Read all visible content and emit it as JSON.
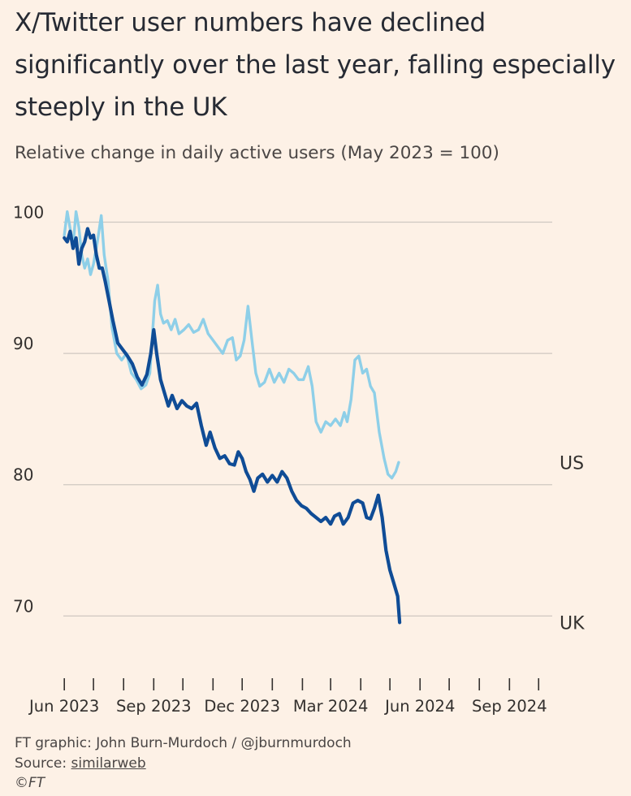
{
  "header": {
    "title": "X/Twitter user numbers have declined significantly over the last year, falling especially steeply in the UK",
    "subtitle": "Relative change in daily active users (May 2023 = 100)"
  },
  "footer": {
    "credit": "FT graphic: John Burn-Murdoch / @jburnmurdoch",
    "source_prefix": "Source: ",
    "source_name": "similarweb",
    "copyright": "©FT"
  },
  "colors": {
    "uk": "#0F4C96",
    "us": "#8ECFE8",
    "grid": "#CFC8C1",
    "text": "#33302E",
    "background": "#FDF1E6"
  },
  "chart_data": {
    "type": "line",
    "title": "X/Twitter user numbers have declined significantly over the last year, falling especially steeply in the UK",
    "ylabel": "Relative change in daily active users (May 2023 = 100)",
    "ylim": [
      66,
      103
    ],
    "xlim": [
      "2023-05-31",
      "2024-10-15"
    ],
    "yticks": [
      100,
      90,
      80,
      70
    ],
    "xticks": [
      {
        "date": "2023-06-01",
        "label": "Jun 2023"
      },
      {
        "date": "2023-07-01",
        "label": ""
      },
      {
        "date": "2023-08-01",
        "label": ""
      },
      {
        "date": "2023-09-01",
        "label": "Sep 2023"
      },
      {
        "date": "2023-10-01",
        "label": ""
      },
      {
        "date": "2023-11-01",
        "label": ""
      },
      {
        "date": "2023-12-01",
        "label": "Dec 2023"
      },
      {
        "date": "2024-01-01",
        "label": ""
      },
      {
        "date": "2024-02-01",
        "label": ""
      },
      {
        "date": "2024-03-01",
        "label": "Mar 2024"
      },
      {
        "date": "2024-04-01",
        "label": ""
      },
      {
        "date": "2024-05-01",
        "label": ""
      },
      {
        "date": "2024-06-01",
        "label": "Jun 2024"
      },
      {
        "date": "2024-07-01",
        "label": ""
      },
      {
        "date": "2024-08-01",
        "label": ""
      },
      {
        "date": "2024-09-01",
        "label": "Sep 2024"
      },
      {
        "date": "2024-10-01",
        "label": ""
      }
    ],
    "grid": true,
    "series": [
      {
        "name": "US",
        "color": "#8ECFE8",
        "points": [
          [
            "2023-06-01",
            99.0
          ],
          [
            "2023-06-04",
            100.8
          ],
          [
            "2023-06-07",
            99.5
          ],
          [
            "2023-06-10",
            98.2
          ],
          [
            "2023-06-13",
            100.8
          ],
          [
            "2023-06-16",
            99.6
          ],
          [
            "2023-06-19",
            97.5
          ],
          [
            "2023-06-22",
            96.5
          ],
          [
            "2023-06-25",
            97.2
          ],
          [
            "2023-06-28",
            96.0
          ],
          [
            "2023-07-01",
            96.8
          ],
          [
            "2023-07-05",
            98.5
          ],
          [
            "2023-07-09",
            100.5
          ],
          [
            "2023-07-12",
            97.5
          ],
          [
            "2023-07-16",
            95.5
          ],
          [
            "2023-07-20",
            92.0
          ],
          [
            "2023-07-25",
            90.0
          ],
          [
            "2023-07-30",
            89.5
          ],
          [
            "2023-08-04",
            90.0
          ],
          [
            "2023-08-09",
            88.5
          ],
          [
            "2023-08-14",
            88.0
          ],
          [
            "2023-08-19",
            87.3
          ],
          [
            "2023-08-24",
            87.6
          ],
          [
            "2023-08-28",
            88.5
          ],
          [
            "2023-09-02",
            94.0
          ],
          [
            "2023-09-05",
            95.2
          ],
          [
            "2023-09-08",
            93.0
          ],
          [
            "2023-09-11",
            92.3
          ],
          [
            "2023-09-15",
            92.5
          ],
          [
            "2023-09-19",
            91.8
          ],
          [
            "2023-09-23",
            92.6
          ],
          [
            "2023-09-27",
            91.5
          ],
          [
            "2023-10-02",
            91.8
          ],
          [
            "2023-10-07",
            92.2
          ],
          [
            "2023-10-12",
            91.6
          ],
          [
            "2023-10-17",
            91.8
          ],
          [
            "2023-10-22",
            92.6
          ],
          [
            "2023-10-27",
            91.5
          ],
          [
            "2023-11-01",
            91.0
          ],
          [
            "2023-11-06",
            90.5
          ],
          [
            "2023-11-11",
            90.0
          ],
          [
            "2023-11-16",
            91.0
          ],
          [
            "2023-11-21",
            91.2
          ],
          [
            "2023-11-25",
            89.5
          ],
          [
            "2023-11-29",
            89.8
          ],
          [
            "2023-12-03",
            91.0
          ],
          [
            "2023-12-07",
            93.6
          ],
          [
            "2023-12-11",
            91.0
          ],
          [
            "2023-12-15",
            88.5
          ],
          [
            "2023-12-19",
            87.5
          ],
          [
            "2023-12-24",
            87.8
          ],
          [
            "2023-12-29",
            88.8
          ],
          [
            "2024-01-03",
            87.8
          ],
          [
            "2024-01-08",
            88.5
          ],
          [
            "2024-01-13",
            87.8
          ],
          [
            "2024-01-18",
            88.8
          ],
          [
            "2024-01-23",
            88.5
          ],
          [
            "2024-01-28",
            88.0
          ],
          [
            "2024-02-02",
            88.0
          ],
          [
            "2024-02-07",
            89.0
          ],
          [
            "2024-02-11",
            87.5
          ],
          [
            "2024-02-15",
            84.8
          ],
          [
            "2024-02-20",
            84.0
          ],
          [
            "2024-02-25",
            84.8
          ],
          [
            "2024-03-01",
            84.5
          ],
          [
            "2024-03-06",
            85.0
          ],
          [
            "2024-03-11",
            84.5
          ],
          [
            "2024-03-15",
            85.5
          ],
          [
            "2024-03-18",
            84.8
          ],
          [
            "2024-03-22",
            86.5
          ],
          [
            "2024-03-26",
            89.5
          ],
          [
            "2024-03-30",
            89.8
          ],
          [
            "2024-04-03",
            88.5
          ],
          [
            "2024-04-07",
            88.8
          ],
          [
            "2024-04-11",
            87.5
          ],
          [
            "2024-04-15",
            87.0
          ],
          [
            "2024-04-20",
            84.0
          ],
          [
            "2024-04-25",
            82.0
          ],
          [
            "2024-04-29",
            80.8
          ],
          [
            "2024-05-03",
            80.5
          ],
          [
            "2024-05-07",
            81.0
          ],
          [
            "2024-05-10",
            81.7
          ]
        ]
      },
      {
        "name": "UK",
        "color": "#0F4C96",
        "points": [
          [
            "2023-06-01",
            98.8
          ],
          [
            "2023-06-04",
            98.5
          ],
          [
            "2023-06-07",
            99.3
          ],
          [
            "2023-06-10",
            98.0
          ],
          [
            "2023-06-13",
            98.8
          ],
          [
            "2023-06-16",
            96.8
          ],
          [
            "2023-06-19",
            98.0
          ],
          [
            "2023-06-22",
            98.5
          ],
          [
            "2023-06-25",
            99.5
          ],
          [
            "2023-06-28",
            98.8
          ],
          [
            "2023-07-01",
            99.0
          ],
          [
            "2023-07-04",
            97.5
          ],
          [
            "2023-07-07",
            96.5
          ],
          [
            "2023-07-10",
            96.5
          ],
          [
            "2023-07-13",
            95.5
          ],
          [
            "2023-07-17",
            94.0
          ],
          [
            "2023-07-21",
            92.5
          ],
          [
            "2023-07-26",
            90.8
          ],
          [
            "2023-07-31",
            90.3
          ],
          [
            "2023-08-05",
            89.8
          ],
          [
            "2023-08-10",
            89.2
          ],
          [
            "2023-08-15",
            88.2
          ],
          [
            "2023-08-20",
            87.6
          ],
          [
            "2023-08-25",
            88.4
          ],
          [
            "2023-08-29",
            90.0
          ],
          [
            "2023-09-01",
            91.8
          ],
          [
            "2023-09-04",
            90.0
          ],
          [
            "2023-09-08",
            88.0
          ],
          [
            "2023-09-12",
            87.0
          ],
          [
            "2023-09-16",
            86.0
          ],
          [
            "2023-09-20",
            86.8
          ],
          [
            "2023-09-25",
            85.8
          ],
          [
            "2023-09-30",
            86.4
          ],
          [
            "2023-10-05",
            86.0
          ],
          [
            "2023-10-10",
            85.8
          ],
          [
            "2023-10-15",
            86.2
          ],
          [
            "2023-10-20",
            84.5
          ],
          [
            "2023-10-25",
            83.0
          ],
          [
            "2023-10-29",
            84.0
          ],
          [
            "2023-11-03",
            82.8
          ],
          [
            "2023-11-08",
            82.0
          ],
          [
            "2023-11-13",
            82.2
          ],
          [
            "2023-11-18",
            81.6
          ],
          [
            "2023-11-23",
            81.5
          ],
          [
            "2023-11-27",
            82.5
          ],
          [
            "2023-12-01",
            82.0
          ],
          [
            "2023-12-05",
            81.0
          ],
          [
            "2023-12-09",
            80.4
          ],
          [
            "2023-12-13",
            79.5
          ],
          [
            "2023-12-17",
            80.5
          ],
          [
            "2023-12-22",
            80.8
          ],
          [
            "2023-12-27",
            80.2
          ],
          [
            "2024-01-01",
            80.7
          ],
          [
            "2024-01-06",
            80.2
          ],
          [
            "2024-01-11",
            81.0
          ],
          [
            "2024-01-16",
            80.5
          ],
          [
            "2024-01-21",
            79.5
          ],
          [
            "2024-01-26",
            78.8
          ],
          [
            "2024-01-31",
            78.4
          ],
          [
            "2024-02-05",
            78.2
          ],
          [
            "2024-02-10",
            77.8
          ],
          [
            "2024-02-15",
            77.5
          ],
          [
            "2024-02-20",
            77.2
          ],
          [
            "2024-02-25",
            77.5
          ],
          [
            "2024-03-01",
            77.0
          ],
          [
            "2024-03-05",
            77.6
          ],
          [
            "2024-03-10",
            77.8
          ],
          [
            "2024-03-14",
            77.0
          ],
          [
            "2024-03-19",
            77.5
          ],
          [
            "2024-03-24",
            78.6
          ],
          [
            "2024-03-29",
            78.8
          ],
          [
            "2024-04-03",
            78.6
          ],
          [
            "2024-04-07",
            77.5
          ],
          [
            "2024-04-11",
            77.4
          ],
          [
            "2024-04-15",
            78.2
          ],
          [
            "2024-04-19",
            79.2
          ],
          [
            "2024-04-23",
            77.5
          ],
          [
            "2024-04-27",
            75.0
          ],
          [
            "2024-05-01",
            73.5
          ],
          [
            "2024-05-05",
            72.5
          ],
          [
            "2024-05-09",
            71.5
          ],
          [
            "2024-05-11",
            69.5
          ]
        ]
      }
    ]
  }
}
